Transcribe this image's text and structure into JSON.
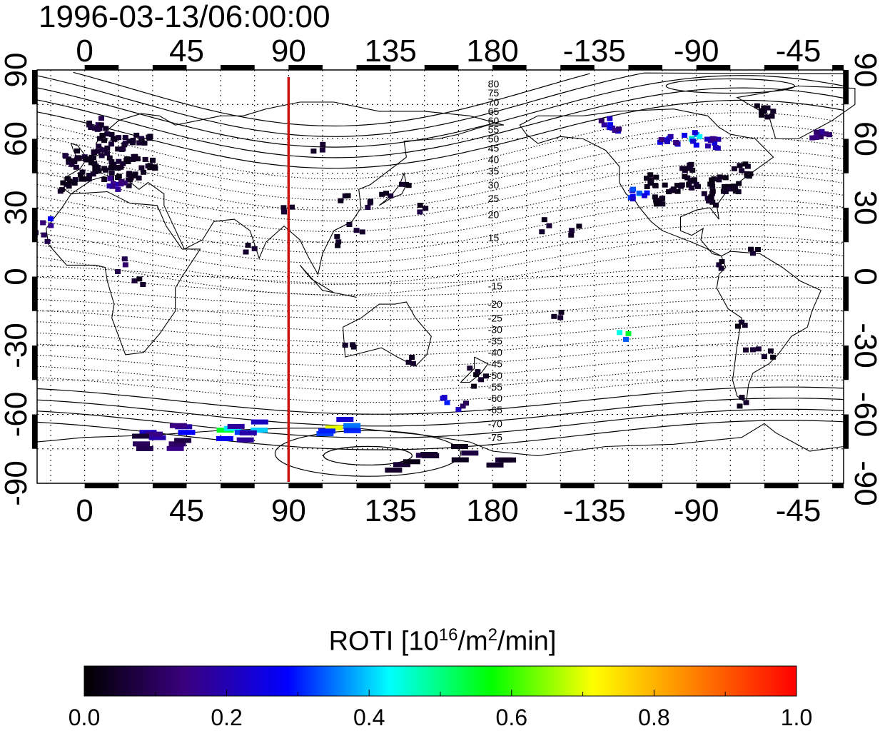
{
  "timestamp": "1996-03-13/06:00:00",
  "map": {
    "lon_range": [
      -21,
      335
    ],
    "lat_range": [
      -90,
      90
    ],
    "top_lon_ticks": [
      {
        "lon": 0,
        "label": "0"
      },
      {
        "lon": 45,
        "label": "45"
      },
      {
        "lon": 90,
        "label": "90"
      },
      {
        "lon": 135,
        "label": "135"
      },
      {
        "lon": 180,
        "label": "180"
      },
      {
        "lon": 225,
        "label": "-135"
      },
      {
        "lon": 270,
        "label": "-90"
      },
      {
        "lon": 315,
        "label": "-45"
      }
    ],
    "bottom_lon_ticks": [
      {
        "lon": 0,
        "label": "0"
      },
      {
        "lon": 45,
        "label": "45"
      },
      {
        "lon": 90,
        "label": "90"
      },
      {
        "lon": 135,
        "label": "135"
      },
      {
        "lon": 180,
        "label": "180"
      },
      {
        "lon": 225,
        "label": "-135"
      },
      {
        "lon": 270,
        "label": "-90"
      },
      {
        "lon": 315,
        "label": "-45"
      }
    ],
    "left_lat_ticks": [
      {
        "lat": 90,
        "label": "90"
      },
      {
        "lat": 60,
        "label": "60"
      },
      {
        "lat": 30,
        "label": "30"
      },
      {
        "lat": 0,
        "label": "0"
      },
      {
        "lat": -30,
        "label": "-30"
      },
      {
        "lat": -60,
        "label": "-60"
      },
      {
        "lat": -90,
        "label": "-90"
      }
    ],
    "right_lat_ticks": [
      {
        "lat": 90,
        "label": "90"
      },
      {
        "lat": 60,
        "label": "60"
      },
      {
        "lat": 30,
        "label": "30"
      },
      {
        "lat": 0,
        "label": "0"
      },
      {
        "lat": -30,
        "label": "-30"
      },
      {
        "lat": -60,
        "label": "-60"
      },
      {
        "lat": -90,
        "label": "-90"
      }
    ],
    "terminator_lon": 90,
    "terminator_color": "#cc1111",
    "mlat_labels": [
      "80",
      "75",
      "70",
      "65",
      "60",
      "55",
      "50",
      "45",
      "40",
      "35",
      "30",
      "25",
      "20",
      "15",
      "-15",
      "-20",
      "-25",
      "-30",
      "-35",
      "-40",
      "-45",
      "-50",
      "-55",
      "-60",
      "-65",
      "-70",
      "-75"
    ]
  },
  "colorbar": {
    "title": "ROTI  [10",
    "title_exp1": "16",
    "title_mid": "/m",
    "title_exp2": "2",
    "title_end": "/min]",
    "min": 0.0,
    "max": 1.0,
    "tick_labels": [
      "0.0",
      "0.2",
      "0.4",
      "0.6",
      "0.8",
      "1.0"
    ],
    "colors": [
      "#000000",
      "#3a0080",
      "#0000ff",
      "#00ffff",
      "#00ff00",
      "#ffff00",
      "#ff8000",
      "#ff0000"
    ]
  },
  "roti_points": [
    {
      "region": "europe",
      "lon": -5,
      "lat": 50,
      "roti": 0.08
    },
    {
      "region": "europe",
      "lon": 0,
      "lat": 52,
      "roti": 0.06
    },
    {
      "region": "europe",
      "lon": 5,
      "lat": 48,
      "roti": 0.05
    },
    {
      "region": "europe",
      "lon": 8,
      "lat": 55,
      "roti": 0.07
    },
    {
      "region": "europe",
      "lon": 12,
      "lat": 45,
      "roti": 0.05
    },
    {
      "region": "europe",
      "lon": 15,
      "lat": 50,
      "roti": 0.06
    },
    {
      "region": "europe",
      "lon": 18,
      "lat": 58,
      "roti": 0.08
    },
    {
      "region": "europe",
      "lon": 20,
      "lat": 42,
      "roti": 0.05
    },
    {
      "region": "europe",
      "lon": 25,
      "lat": 60,
      "roti": 0.07
    },
    {
      "region": "europe",
      "lon": 10,
      "lat": 62,
      "roti": 0.06
    },
    {
      "region": "europe",
      "lon": 2,
      "lat": 44,
      "roti": 0.05
    },
    {
      "region": "europe",
      "lon": 14,
      "lat": 40,
      "roti": 0.22
    },
    {
      "region": "europe",
      "lon": 28,
      "lat": 48,
      "roti": 0.06
    },
    {
      "region": "europe",
      "lon": 6,
      "lat": 66,
      "roti": 0.1
    },
    {
      "region": "europe",
      "lon": -8,
      "lat": 40,
      "roti": 0.06
    },
    {
      "region": "europe",
      "lon": 22,
      "lat": 52,
      "roti": 0.05
    },
    {
      "region": "na",
      "lon": 250,
      "lat": 42,
      "roti": 0.05
    },
    {
      "region": "na",
      "lon": 260,
      "lat": 38,
      "roti": 0.05
    },
    {
      "region": "na",
      "lon": 270,
      "lat": 40,
      "roti": 0.06
    },
    {
      "region": "na",
      "lon": 280,
      "lat": 42,
      "roti": 0.05
    },
    {
      "region": "na",
      "lon": 285,
      "lat": 38,
      "roti": 0.05
    },
    {
      "region": "na",
      "lon": 275,
      "lat": 34,
      "roti": 0.06
    },
    {
      "region": "na",
      "lon": 255,
      "lat": 34,
      "roti": 0.05
    },
    {
      "region": "na",
      "lon": 265,
      "lat": 46,
      "roti": 0.06
    },
    {
      "region": "na",
      "lon": 290,
      "lat": 46,
      "roti": 0.05
    },
    {
      "region": "na",
      "lon": 245,
      "lat": 36,
      "roti": 0.45
    },
    {
      "region": "na",
      "lon": 258,
      "lat": 60,
      "roti": 0.3
    },
    {
      "region": "na",
      "lon": 268,
      "lat": 60,
      "roti": 0.48
    },
    {
      "region": "na",
      "lon": 278,
      "lat": 58,
      "roti": 0.25
    },
    {
      "region": "na",
      "lon": 232,
      "lat": 66,
      "roti": 0.28
    },
    {
      "region": "na",
      "lon": 325,
      "lat": 62,
      "roti": 0.25
    },
    {
      "region": "na",
      "lon": 300,
      "lat": 72,
      "roti": 0.05
    },
    {
      "region": "asia",
      "lon": 105,
      "lat": 55,
      "roti": 0.06
    },
    {
      "region": "asia",
      "lon": 115,
      "lat": 35,
      "roti": 0.05
    },
    {
      "region": "asia",
      "lon": 125,
      "lat": 30,
      "roti": 0.07
    },
    {
      "region": "asia",
      "lon": 135,
      "lat": 35,
      "roti": 0.06
    },
    {
      "region": "asia",
      "lon": 140,
      "lat": 40,
      "roti": 0.05
    },
    {
      "region": "asia",
      "lon": 120,
      "lat": 20,
      "roti": 0.06
    },
    {
      "region": "asia",
      "lon": 112,
      "lat": 15,
      "roti": 0.05
    },
    {
      "region": "asia",
      "lon": 75,
      "lat": 12,
      "roti": 0.06
    },
    {
      "region": "asia",
      "lon": 88,
      "lat": 28,
      "roti": 0.06
    },
    {
      "region": "asia",
      "lon": 148,
      "lat": 28,
      "roti": 0.08
    },
    {
      "region": "africa",
      "lon": 18,
      "lat": 5,
      "roti": 0.12
    },
    {
      "region": "africa",
      "lon": 22,
      "lat": -2,
      "roti": 0.06
    },
    {
      "region": "africa",
      "lon": -15,
      "lat": 25,
      "roti": 0.28
    },
    {
      "region": "africa",
      "lon": -18,
      "lat": 18,
      "roti": 0.1
    },
    {
      "region": "aus",
      "lon": 115,
      "lat": -30,
      "roti": 0.05
    },
    {
      "region": "aus",
      "lon": 145,
      "lat": -38,
      "roti": 0.05
    },
    {
      "region": "aus",
      "lon": 170,
      "lat": -40,
      "roti": 0.05
    },
    {
      "region": "aus",
      "lon": 175,
      "lat": -45,
      "roti": 0.05
    },
    {
      "region": "aus",
      "lon": 160,
      "lat": -55,
      "roti": 0.3
    },
    {
      "region": "aus",
      "lon": 165,
      "lat": -58,
      "roti": 0.22
    },
    {
      "region": "pac",
      "lon": 210,
      "lat": -18,
      "roti": 0.06
    },
    {
      "region": "pac",
      "lon": 240,
      "lat": -25,
      "roti": 0.55
    },
    {
      "region": "pac",
      "lon": 215,
      "lat": 20,
      "roti": 0.06
    },
    {
      "region": "pac",
      "lon": 205,
      "lat": 22,
      "roti": 0.06
    },
    {
      "region": "sa",
      "lon": 290,
      "lat": -20,
      "roti": 0.05
    },
    {
      "region": "sa",
      "lon": 295,
      "lat": -32,
      "roti": 0.06
    },
    {
      "region": "sa",
      "lon": 300,
      "lat": -35,
      "roti": 0.05
    },
    {
      "region": "sa",
      "lon": 292,
      "lat": -55,
      "roti": 0.05
    },
    {
      "region": "sa",
      "lon": 280,
      "lat": 5,
      "roti": 0.06
    },
    {
      "region": "sa",
      "lon": 295,
      "lat": 10,
      "roti": 0.06
    },
    {
      "region": "ant",
      "lon": 28,
      "lat": -68,
      "roti": 0.22
    },
    {
      "region": "ant",
      "lon": 45,
      "lat": -68,
      "roti": 0.28
    },
    {
      "region": "ant",
      "lon": 62,
      "lat": -67,
      "roti": 0.55
    },
    {
      "region": "ant",
      "lon": 70,
      "lat": -68,
      "roti": 0.32
    },
    {
      "region": "ant",
      "lon": 77,
      "lat": -67,
      "roti": 0.4
    },
    {
      "region": "ant",
      "lon": 110,
      "lat": -66,
      "roti": 0.7
    },
    {
      "region": "ant",
      "lon": 118,
      "lat": -65,
      "roti": 0.35
    },
    {
      "region": "ant",
      "lon": 40,
      "lat": -75,
      "roti": 0.15
    },
    {
      "region": "ant",
      "lon": 25,
      "lat": -73,
      "roti": 0.1
    },
    {
      "region": "ant",
      "lon": 150,
      "lat": -78,
      "roti": 0.08
    },
    {
      "region": "ant",
      "lon": 170,
      "lat": -77,
      "roti": 0.07
    },
    {
      "region": "ant",
      "lon": 185,
      "lat": -80,
      "roti": 0.06
    },
    {
      "region": "ant",
      "lon": 140,
      "lat": -82,
      "roti": 0.06
    }
  ]
}
